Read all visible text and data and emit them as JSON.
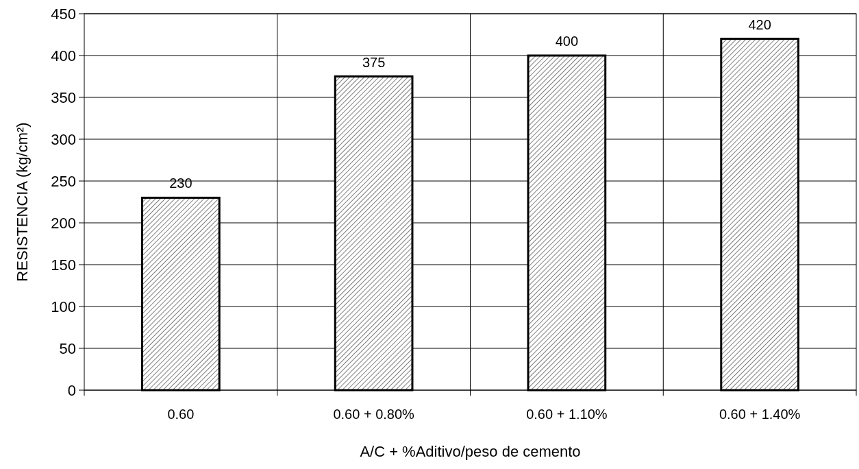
{
  "chart_data": {
    "type": "bar",
    "xlabel": "A/C + %Aditivo/peso de cemento",
    "ylabel": "RESISTENCIA (kg/cm²)",
    "categories": [
      "0.60",
      "0.60 + 0.80%",
      "0.60 + 1.10%",
      "0.60 + 1.40%"
    ],
    "values": [
      230,
      375,
      400,
      420
    ],
    "color": "#000000",
    "ylim": [
      0,
      450
    ],
    "yticks": [
      0,
      50,
      100,
      150,
      200,
      250,
      300,
      350,
      400,
      450
    ],
    "grid": true,
    "data_labels": true
  }
}
